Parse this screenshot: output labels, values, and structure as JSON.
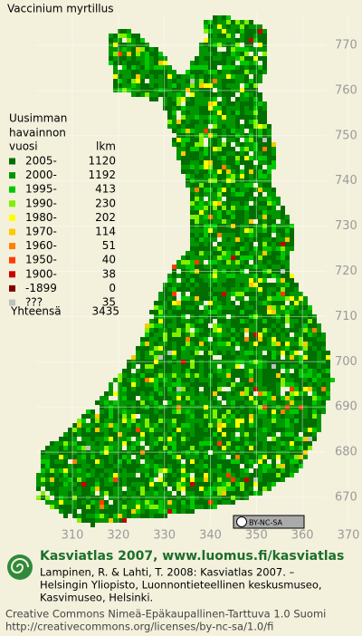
{
  "title": "Vaccinium myrtillus",
  "legend": {
    "header": [
      "Uusimman",
      "havainnon"
    ],
    "year_heading": "vuosi",
    "count_heading": "lkm",
    "rows": [
      {
        "label": "2005-",
        "count": 1120,
        "color": "#006e00"
      },
      {
        "label": "2000-",
        "count": 1192,
        "color": "#009600"
      },
      {
        "label": "1995-",
        "count": 413,
        "color": "#00c800"
      },
      {
        "label": "1990-",
        "count": 230,
        "color": "#80f000"
      },
      {
        "label": "1980-",
        "count": 202,
        "color": "#ffff00"
      },
      {
        "label": "1970-",
        "count": 114,
        "color": "#ffc800"
      },
      {
        "label": "1960-",
        "count": 51,
        "color": "#ff8000"
      },
      {
        "label": "1950-",
        "count": 40,
        "color": "#ff3c00"
      },
      {
        "label": "1900-",
        "count": 38,
        "color": "#c80000"
      },
      {
        "label": "-1899",
        "count": 0,
        "color": "#800000"
      },
      {
        "label": "???",
        "count": 35,
        "color": "#c0c0c0"
      }
    ],
    "total_label": "Yhteensä",
    "total": 3435
  },
  "grid": {
    "y_labels": [
      770,
      760,
      750,
      740,
      730,
      720,
      710,
      700,
      690,
      680,
      670
    ],
    "x_labels": [
      310,
      320,
      330,
      340,
      350,
      360,
      370
    ]
  },
  "badge": "BY-NC-SA",
  "footer": {
    "heading": "Kasviatlas 2007, www.luomus.fi/kasviatlas",
    "citation": [
      "Lampinen, R. & Lahti, T. 2008: Kasviatlas 2007. –",
      "Helsingin Yliopisto, Luonnontieteellinen keskusmuseo,",
      "Kasvimuseo, Helsinki."
    ],
    "license": [
      "Creative Commons Nimeä-Epäkaupallinen-Tarttuva 1.0 Suomi",
      "http://creativecommons.org/licenses/by-nc-sa/1.0/fi"
    ]
  }
}
